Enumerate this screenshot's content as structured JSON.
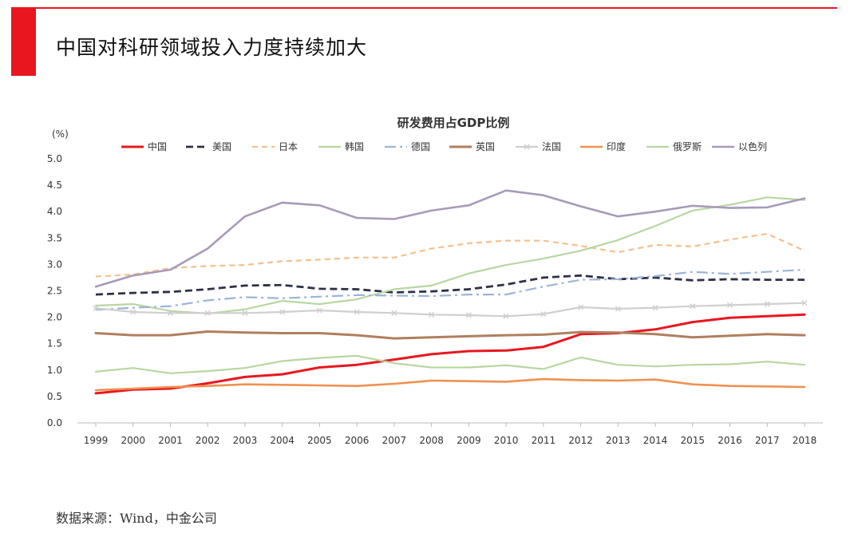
{
  "page": {
    "title": "中国对科研领域投入力度持续加大",
    "source": "数据来源：Wind，中金公司"
  },
  "chart_data": {
    "type": "line",
    "title": "研发费用占GDP比例",
    "ylabel": "(%)",
    "xlabel": "",
    "ylim": [
      0,
      5
    ],
    "yticks": [
      "0.0",
      "0.5",
      "1.0",
      "1.5",
      "2.0",
      "2.5",
      "3.0",
      "3.5",
      "4.0",
      "4.5",
      "5.0"
    ],
    "categories": [
      "1999",
      "2000",
      "2001",
      "2002",
      "2003",
      "2004",
      "2005",
      "2006",
      "2007",
      "2008",
      "2009",
      "2010",
      "2011",
      "2012",
      "2013",
      "2014",
      "2015",
      "2016",
      "2017",
      "2018"
    ],
    "legend_position": "top",
    "grid": false,
    "series": [
      {
        "name": "中国",
        "color": "#e8171f",
        "dash": "solid",
        "width": 3,
        "values": [
          0.56,
          0.63,
          0.65,
          0.75,
          0.87,
          0.92,
          1.05,
          1.1,
          1.2,
          1.3,
          1.36,
          1.37,
          1.44,
          1.68,
          1.7,
          1.77,
          1.91,
          1.99,
          2.02,
          2.05
        ]
      },
      {
        "name": "美国",
        "color": "#2d3047",
        "dash": "dash",
        "width": 2.8,
        "values": [
          2.43,
          2.46,
          2.48,
          2.53,
          2.6,
          2.61,
          2.54,
          2.53,
          2.47,
          2.49,
          2.53,
          2.62,
          2.75,
          2.79,
          2.72,
          2.75,
          2.7,
          2.72,
          2.71,
          2.71
        ]
      },
      {
        "name": "日本",
        "color": "#f4c08c",
        "dash": "dash2",
        "width": 2.2,
        "values": [
          2.77,
          2.81,
          2.93,
          2.97,
          2.99,
          3.06,
          3.09,
          3.13,
          3.13,
          3.3,
          3.4,
          3.45,
          3.45,
          3.35,
          3.23,
          3.37,
          3.34,
          3.47,
          3.58,
          3.26
        ]
      },
      {
        "name": "韩国",
        "color": "#b6d7a0",
        "dash": "solid",
        "width": 2.2,
        "values": [
          2.22,
          2.25,
          2.12,
          2.07,
          2.15,
          2.31,
          2.25,
          2.34,
          2.53,
          2.6,
          2.83,
          2.99,
          3.11,
          3.26,
          3.46,
          3.73,
          4.02,
          4.13,
          4.27,
          4.22
        ]
      },
      {
        "name": "德国",
        "color": "#9bb4d9",
        "dash": "dashdot",
        "width": 2.2,
        "values": [
          2.14,
          2.18,
          2.21,
          2.32,
          2.38,
          2.36,
          2.39,
          2.42,
          2.41,
          2.4,
          2.43,
          2.43,
          2.58,
          2.71,
          2.72,
          2.78,
          2.86,
          2.82,
          2.86,
          2.9
        ]
      },
      {
        "name": "英国",
        "color": "#b07f5f",
        "dash": "solid",
        "width": 3,
        "values": [
          1.7,
          1.66,
          1.66,
          1.73,
          1.71,
          1.7,
          1.7,
          1.66,
          1.6,
          1.62,
          1.64,
          1.66,
          1.67,
          1.72,
          1.71,
          1.68,
          1.62,
          1.65,
          1.68,
          1.66
        ]
      },
      {
        "name": "法国",
        "color": "#cfcfcf",
        "dash": "solid",
        "width": 2.2,
        "marker": "x",
        "values": [
          2.17,
          2.1,
          2.08,
          2.08,
          2.08,
          2.1,
          2.13,
          2.1,
          2.08,
          2.05,
          2.04,
          2.02,
          2.06,
          2.19,
          2.16,
          2.18,
          2.21,
          2.23,
          2.25,
          2.27
        ]
      },
      {
        "name": "印度",
        "color": "#ef9150",
        "dash": "solid",
        "width": 2.6,
        "values": [
          0.62,
          0.65,
          0.68,
          0.7,
          0.73,
          0.72,
          0.71,
          0.7,
          0.74,
          0.8,
          0.79,
          0.78,
          0.83,
          0.81,
          0.8,
          0.82,
          0.73,
          0.7,
          0.69,
          0.68
        ]
      },
      {
        "name": "俄罗斯",
        "color": "#b6d7a0",
        "dash": "solid",
        "width": 2.2,
        "values": [
          0.97,
          1.04,
          0.94,
          0.98,
          1.04,
          1.17,
          1.23,
          1.27,
          1.13,
          1.05,
          1.05,
          1.09,
          1.02,
          1.24,
          1.1,
          1.07,
          1.1,
          1.11,
          1.16,
          1.1
        ]
      },
      {
        "name": "以色列",
        "color": "#a89ab9",
        "dash": "solid",
        "width": 2.6,
        "values": [
          2.58,
          2.79,
          2.9,
          3.3,
          3.91,
          4.17,
          4.12,
          3.88,
          3.86,
          4.02,
          4.12,
          4.4,
          4.31,
          4.1,
          3.91,
          4.0,
          4.11,
          4.07,
          4.08,
          4.25
        ]
      }
    ]
  }
}
